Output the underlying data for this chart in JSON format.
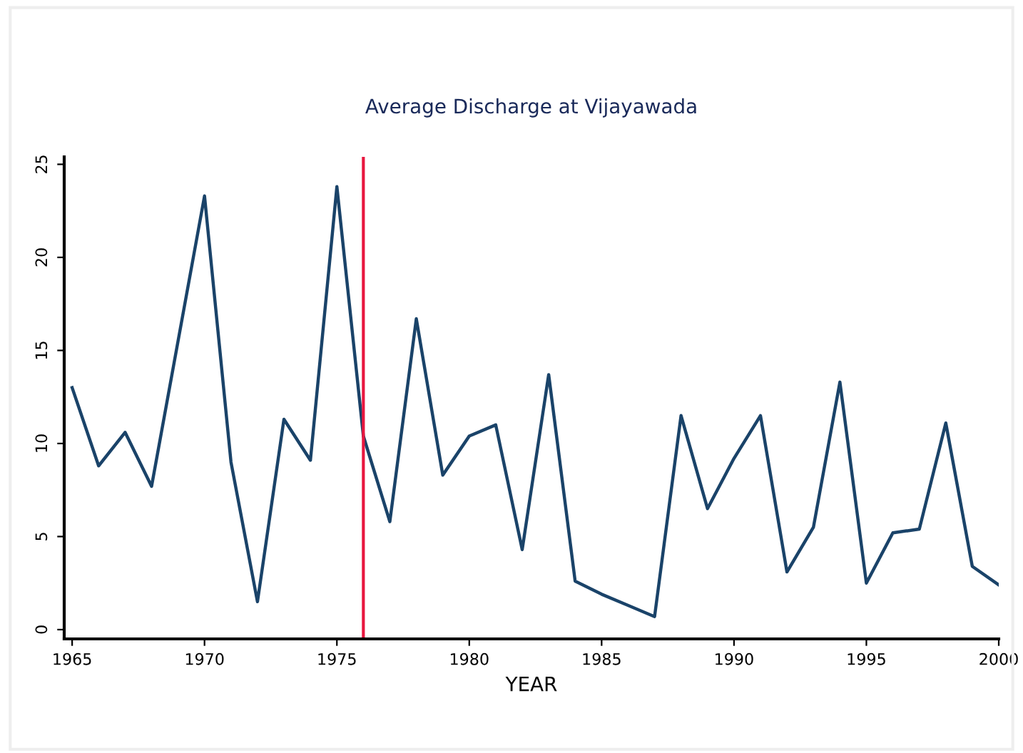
{
  "chart_data": {
    "type": "line",
    "title": "Average Discharge at Vijayawada",
    "xlabel": "YEAR",
    "x": [
      1965,
      1966,
      1967,
      1968,
      1969,
      1970,
      1971,
      1972,
      1973,
      1974,
      1975,
      1976,
      1977,
      1978,
      1979,
      1980,
      1981,
      1982,
      1983,
      1984,
      1985,
      1986,
      1987,
      1988,
      1989,
      1990,
      1991,
      1992,
      1993,
      1994,
      1995,
      1996,
      1997,
      1998,
      1999,
      2000
    ],
    "series": [
      {
        "color": "#1a4369",
        "values": [
          13.0,
          8.8,
          10.6,
          7.7,
          15.5,
          23.3,
          9.0,
          1.5,
          11.3,
          9.1,
          23.8,
          10.4,
          5.8,
          16.7,
          8.3,
          10.4,
          11.0,
          4.3,
          13.7,
          2.6,
          1.9,
          1.3,
          0.7,
          11.5,
          6.5,
          9.2,
          11.5,
          3.1,
          5.5,
          13.3,
          2.5,
          5.2,
          5.4,
          11.1,
          3.4,
          2.4
        ]
      }
    ],
    "xlim": [
      1964.7,
      2000
    ],
    "ylim": [
      -0.5,
      25.4
    ],
    "xticks": [
      1965,
      1970,
      1975,
      1980,
      1985,
      1990,
      1995,
      2000
    ],
    "yticks": [
      0,
      5,
      10,
      15,
      20,
      25
    ],
    "ref_lines": [
      {
        "axis": "x",
        "value": 1976,
        "color": "#e8173f"
      }
    ],
    "grid": false,
    "legend": false,
    "marker": "none",
    "line_style": "solid"
  }
}
